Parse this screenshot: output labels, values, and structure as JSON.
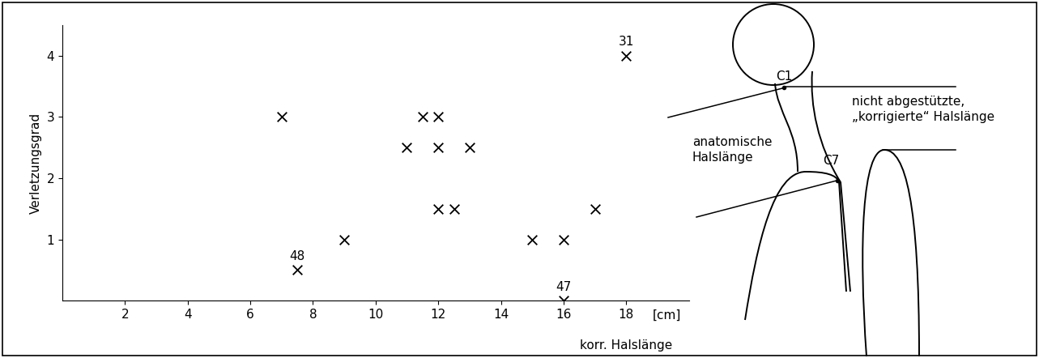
{
  "chart_data": {
    "type": "scatter",
    "x_label": "korr. Halslänge",
    "x_unit": "[cm]",
    "y_label": "Verletzungsgrad",
    "x": [
      7,
      7.5,
      9,
      11,
      11.5,
      12,
      12,
      13,
      12,
      12.5,
      15,
      16,
      16,
      17,
      18
    ],
    "values": [
      3,
      0.5,
      1,
      2.5,
      3,
      3,
      2.5,
      2.5,
      1.5,
      1.5,
      1,
      1,
      0,
      1.5,
      4
    ],
    "point_labels": [
      null,
      "48",
      null,
      null,
      null,
      null,
      null,
      null,
      null,
      null,
      null,
      null,
      "47",
      null,
      "31"
    ],
    "color": "#000000",
    "marker": "x",
    "xlim": [
      0,
      20
    ],
    "xticks": [
      2,
      4,
      6,
      8,
      10,
      12,
      14,
      16,
      18
    ],
    "ylim": [
      0,
      4.5
    ],
    "yticks": [
      1,
      2,
      3,
      4
    ]
  },
  "diagram": {
    "labels": {
      "c1": "C1",
      "c7": "C7",
      "anatomical": "anatomische\nHalslänge",
      "corrected": "nicht abgestützte,\n„korrigierte“ Halslänge"
    }
  }
}
